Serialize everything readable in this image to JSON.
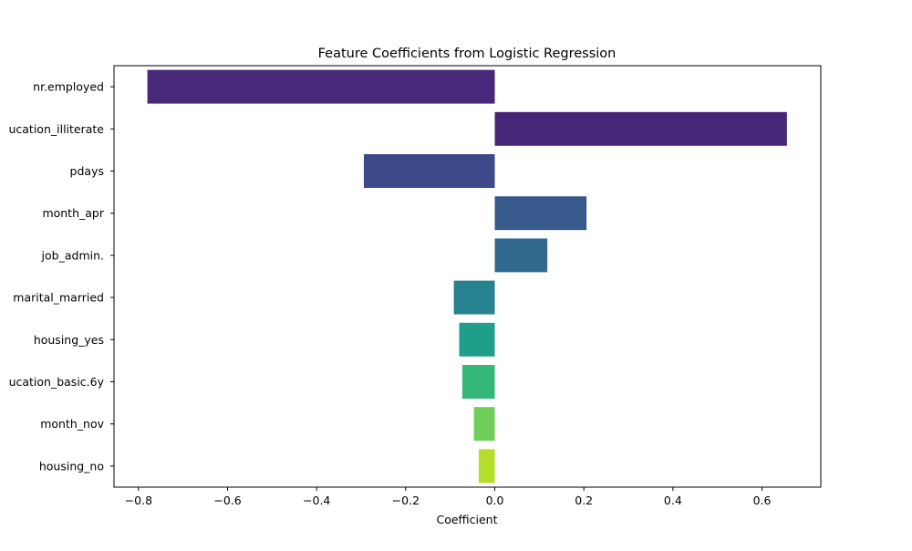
{
  "chart_data": {
    "type": "bar",
    "orientation": "horizontal",
    "title": "Feature Coefficients from Logistic Regression",
    "xlabel": "Coefficient",
    "ylabel": "",
    "xlim": [
      -0.855,
      0.732
    ],
    "xticks": [
      -0.8,
      -0.6,
      -0.4,
      -0.2,
      0.0,
      0.2,
      0.4,
      0.6
    ],
    "xtick_labels": [
      "−0.8",
      "−0.6",
      "−0.4",
      "−0.2",
      "0.0",
      "0.2",
      "0.4",
      "0.6"
    ],
    "categories": [
      "nr.employed",
      "ucation_illiterate",
      "pdays",
      "month_apr",
      "job_admin.",
      "marital_married",
      "housing_yes",
      "ucation_basic.6y",
      "month_nov",
      "housing_no"
    ],
    "values": [
      -0.78,
      0.656,
      -0.294,
      0.206,
      0.118,
      -0.092,
      -0.08,
      -0.073,
      -0.047,
      -0.036
    ],
    "colors": [
      "#482878",
      "#482677",
      "#3e4989",
      "#38598c",
      "#31688e",
      "#26828e",
      "#1f9e89",
      "#35b779",
      "#6ece58",
      "#b5de2b"
    ],
    "grid": false,
    "legend": "none"
  }
}
